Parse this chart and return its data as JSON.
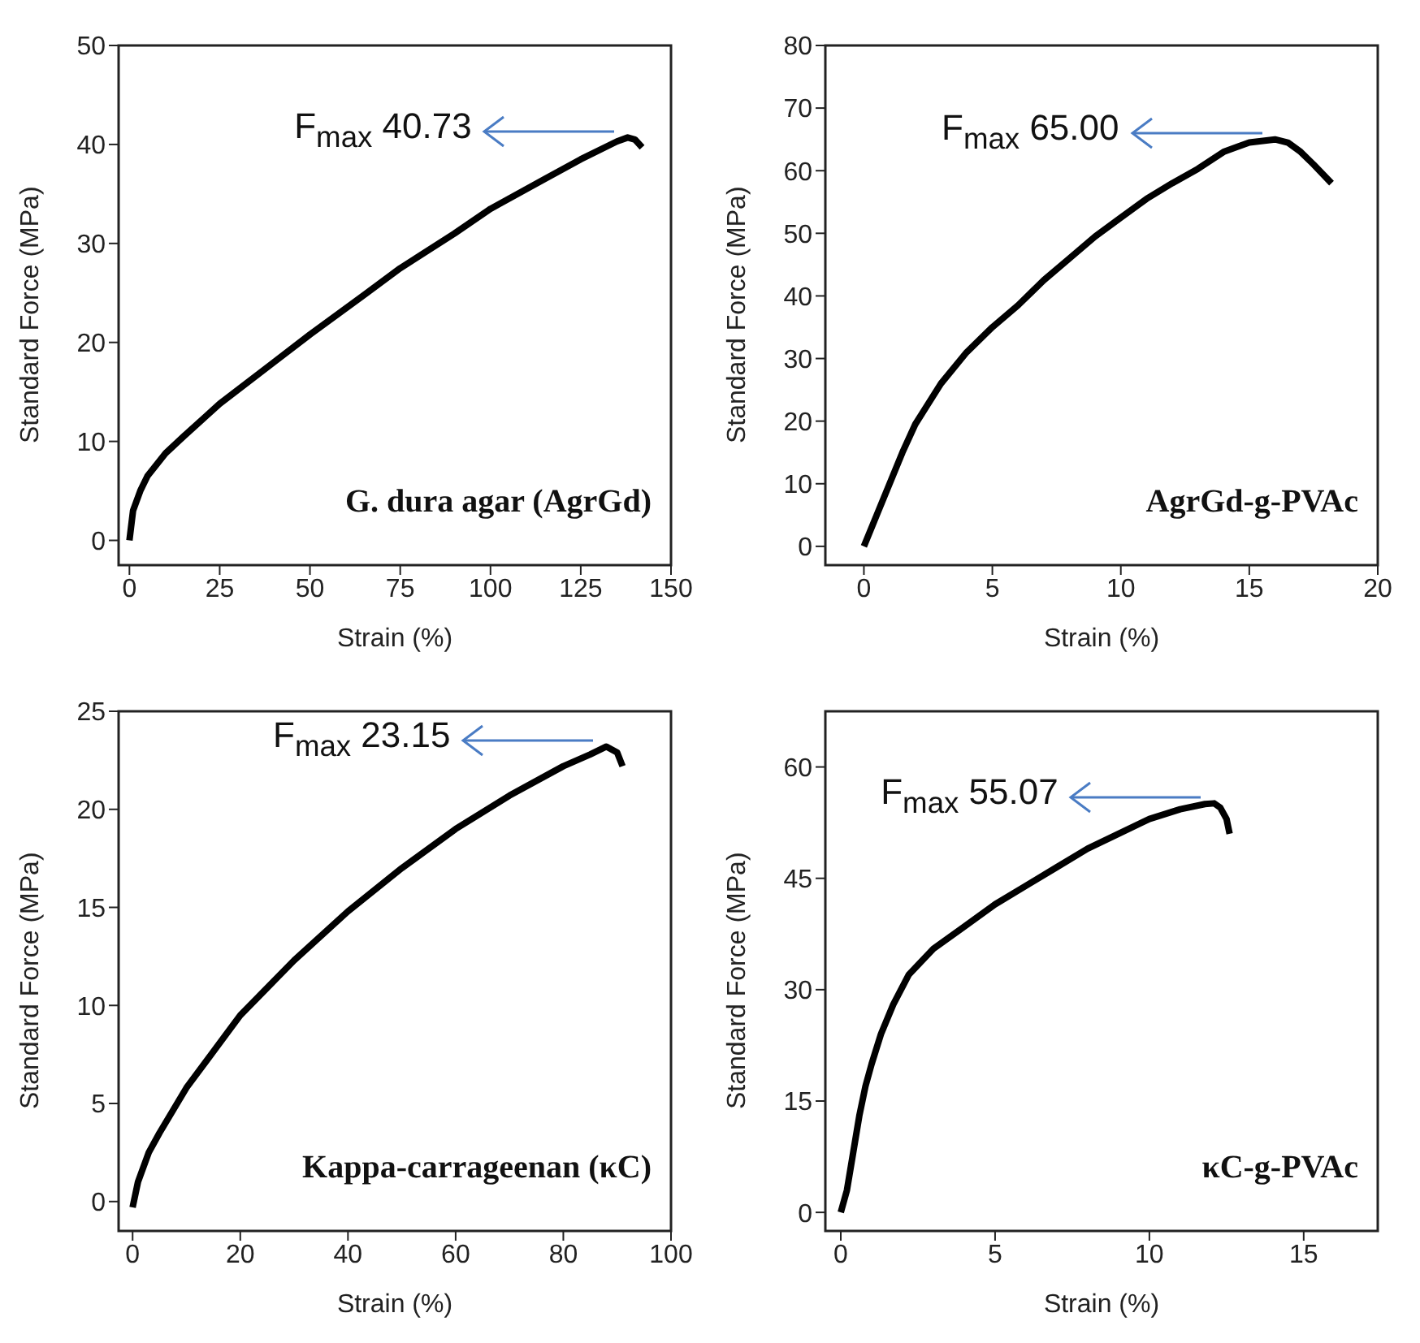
{
  "chart_data": [
    {
      "type": "line",
      "xlabel": "Strain (%)",
      "ylabel": "Standard Force (MPa)",
      "xlim": [
        -3,
        150
      ],
      "ylim": [
        -2.5,
        50
      ],
      "xticks": [
        0,
        25,
        50,
        75,
        100,
        125,
        150
      ],
      "yticks": [
        0,
        10,
        20,
        30,
        40,
        50
      ],
      "line_style": "solid",
      "series": [
        {
          "color": "#000000",
          "x": [
            0,
            1,
            3,
            5,
            10,
            15,
            25,
            40,
            50,
            65,
            75,
            90,
            100,
            115,
            125,
            135,
            138,
            140,
            142
          ],
          "values": [
            0,
            3,
            5,
            6.5,
            8.8,
            10.5,
            13.8,
            18,
            20.8,
            24.8,
            27.5,
            31,
            33.5,
            36.5,
            38.5,
            40.3,
            40.7,
            40.5,
            39.7
          ]
        }
      ],
      "annotations": [
        {
          "text": "F$_{max}$ 40.73",
          "x": 138,
          "y": 40.73
        },
        "G. dura agar (AgrGd)"
      ]
    },
    {
      "type": "line",
      "xlabel": "Strain (%)",
      "ylabel": "Standard Force (MPa)",
      "xlim": [
        -1.5,
        20
      ],
      "ylim": [
        -3,
        80
      ],
      "xticks": [
        0,
        5,
        10,
        15,
        20
      ],
      "yticks": [
        0,
        10,
        20,
        30,
        40,
        50,
        60,
        70,
        80
      ],
      "line_style": "solid",
      "series": [
        {
          "color": "#000000",
          "x": [
            0,
            0.5,
            1,
            1.5,
            2,
            3,
            4,
            5,
            6,
            7,
            8,
            9,
            10,
            11,
            12,
            13,
            14,
            15,
            16,
            16.5,
            17,
            17.5,
            18.2
          ],
          "values": [
            0,
            5,
            10,
            15,
            19.5,
            26,
            31,
            35,
            38.5,
            42.5,
            46,
            49.5,
            52.5,
            55.5,
            58,
            60.3,
            63,
            64.5,
            65,
            64.5,
            63,
            61,
            58
          ]
        }
      ],
      "annotations": [
        {
          "text": "F$_{max}$ 65.00",
          "x": 16,
          "y": 65
        },
        "AgrGd-g-PVAc"
      ]
    },
    {
      "type": "line",
      "xlabel": "Strain (%)",
      "ylabel": "Standard Force (MPa)",
      "xlim": [
        -2.6,
        100
      ],
      "ylim": [
        -1.5,
        25
      ],
      "xticks": [
        0,
        20,
        40,
        60,
        80,
        100
      ],
      "yticks": [
        0,
        5,
        10,
        15,
        20,
        25
      ],
      "line_style": "solid",
      "series": [
        {
          "color": "#000000",
          "x": [
            0,
            1,
            3,
            5,
            10,
            20,
            30,
            40,
            50,
            60,
            70,
            80,
            85,
            88,
            90,
            91
          ],
          "values": [
            -0.3,
            1,
            2.5,
            3.5,
            5.8,
            9.5,
            12.3,
            14.8,
            17,
            19,
            20.7,
            22.2,
            22.8,
            23.2,
            22.9,
            22.2
          ]
        }
      ],
      "annotations": [
        {
          "text": "F$_{max}$ 23.15",
          "x": 88,
          "y": 23.15
        },
        "Kappa-carrageenan (κC)"
      ]
    },
    {
      "type": "line",
      "xlabel": "Strain (%)",
      "ylabel": "Standard Force (MPa)",
      "xlim": [
        -0.5,
        17.4
      ],
      "ylim": [
        -2.5,
        67.5
      ],
      "xticks": [
        0,
        5,
        10,
        15
      ],
      "yticks": [
        0,
        15,
        30,
        45,
        60
      ],
      "line_style": "solid",
      "series": [
        {
          "color": "#000000",
          "x": [
            0,
            0.2,
            0.4,
            0.6,
            0.8,
            1,
            1.3,
            1.7,
            2.2,
            3,
            4,
            5,
            6,
            7,
            8,
            9,
            10,
            11,
            11.8,
            12.1,
            12.3,
            12.5,
            12.6
          ],
          "values": [
            0,
            3,
            8,
            13,
            17,
            20,
            24,
            28,
            32,
            35.5,
            38.5,
            41.5,
            44,
            46.5,
            49,
            51,
            53,
            54.3,
            55,
            55.1,
            54.5,
            53,
            51
          ]
        }
      ],
      "annotations": [
        {
          "text": "F$_{max}$ 55.07",
          "x": 12.1,
          "y": 55.07
        },
        "κC-g-PVAc"
      ]
    }
  ]
}
